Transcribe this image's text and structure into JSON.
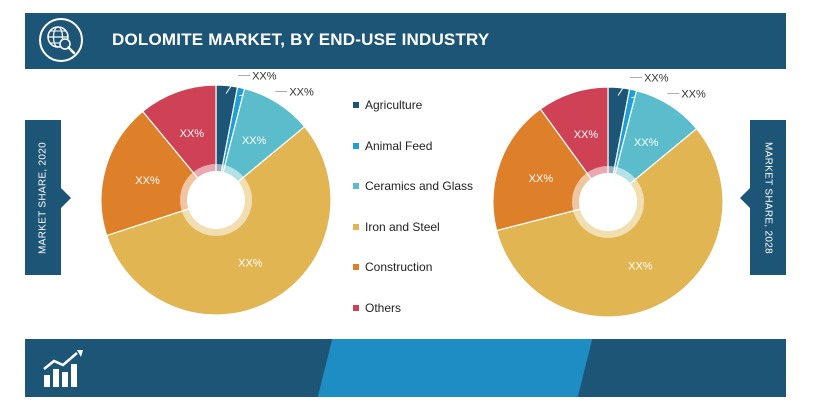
{
  "header": {
    "title": "DOLOMITE MARKET, BY END-USE INDUSTRY"
  },
  "side_labels": {
    "left": "MARKET SHARE, 2020",
    "right": "MARKET SHARE, 2028"
  },
  "colors": {
    "header_bg": "#1d5577",
    "footer_band": "#1e8dc4",
    "Agriculture": "#1d5577",
    "Animal Feed": "#1f9ed8",
    "Ceramics and Glass": "#5bbccb",
    "Iron and Steel": "#e1b552",
    "Construction": "#de7f2a",
    "Others": "#cf4155"
  },
  "icons": {
    "header": "globe-search-icon",
    "footer": "growth-bar-chart-icon"
  },
  "legend": [
    {
      "label": "Agriculture",
      "color": "#1d5577"
    },
    {
      "label": "Animal Feed",
      "color": "#1f9ed8"
    },
    {
      "label": "Ceramics and Glass",
      "color": "#5bbccb"
    },
    {
      "label": "Iron and Steel",
      "color": "#e1b552"
    },
    {
      "label": "Construction",
      "color": "#de7f2a"
    },
    {
      "label": "Others",
      "color": "#cf4155"
    }
  ],
  "chart_data": [
    {
      "type": "pie",
      "year_label": "MARKET SHARE, 2020",
      "categories": [
        "Agriculture",
        "Animal Feed",
        "Ceramics and Glass",
        "Iron and Steel",
        "Construction",
        "Others"
      ],
      "values": [
        3,
        1,
        10,
        56,
        19,
        11
      ],
      "data_labels": [
        "XX%",
        "XX%",
        "XX%",
        "XX%",
        "XX%",
        "XX%"
      ],
      "donut": true
    },
    {
      "type": "pie",
      "year_label": "MARKET SHARE, 2028",
      "categories": [
        "Agriculture",
        "Animal Feed",
        "Ceramics and Glass",
        "Iron and Steel",
        "Construction",
        "Others"
      ],
      "values": [
        3,
        1,
        10,
        57,
        19,
        10
      ],
      "data_labels": [
        "XX%",
        "XX%",
        "XX%",
        "XX%",
        "XX%",
        "XX%"
      ],
      "donut": true
    }
  ]
}
